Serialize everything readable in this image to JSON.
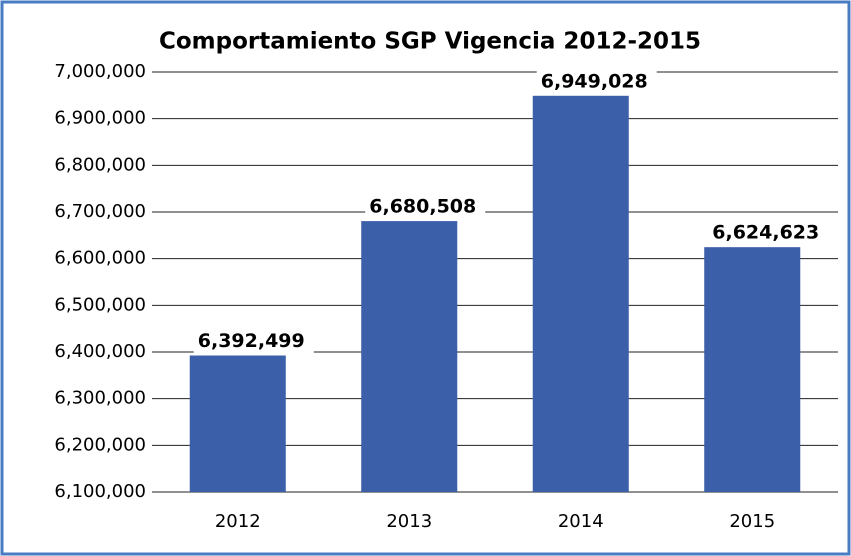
{
  "chart_data": {
    "type": "bar",
    "title": "Comportamiento SGP Vigencia 2012-2015",
    "categories": [
      "2012",
      "2013",
      "2014",
      "2015"
    ],
    "values": [
      6392499,
      6680508,
      6949028,
      6624623
    ],
    "value_labels": [
      "6,392,499",
      "6,680,508",
      "6,949,028",
      "6,624,623"
    ],
    "color": "#3b5fa9",
    "ylim": [
      6100000,
      7000000
    ],
    "yticks": [
      {
        "value": 6100000,
        "label": "6,100,000"
      },
      {
        "value": 6200000,
        "label": "6,200,000"
      },
      {
        "value": 6300000,
        "label": "6,300,000"
      },
      {
        "value": 6400000,
        "label": "6,400,000"
      },
      {
        "value": 6500000,
        "label": "6,500,000"
      },
      {
        "value": 6600000,
        "label": "6,600,000"
      },
      {
        "value": 6700000,
        "label": "6,700,000"
      },
      {
        "value": 6800000,
        "label": "6,800,000"
      },
      {
        "value": 6900000,
        "label": "6,900,000"
      },
      {
        "value": 7000000,
        "label": "7,000,000"
      }
    ],
    "grid": true
  }
}
